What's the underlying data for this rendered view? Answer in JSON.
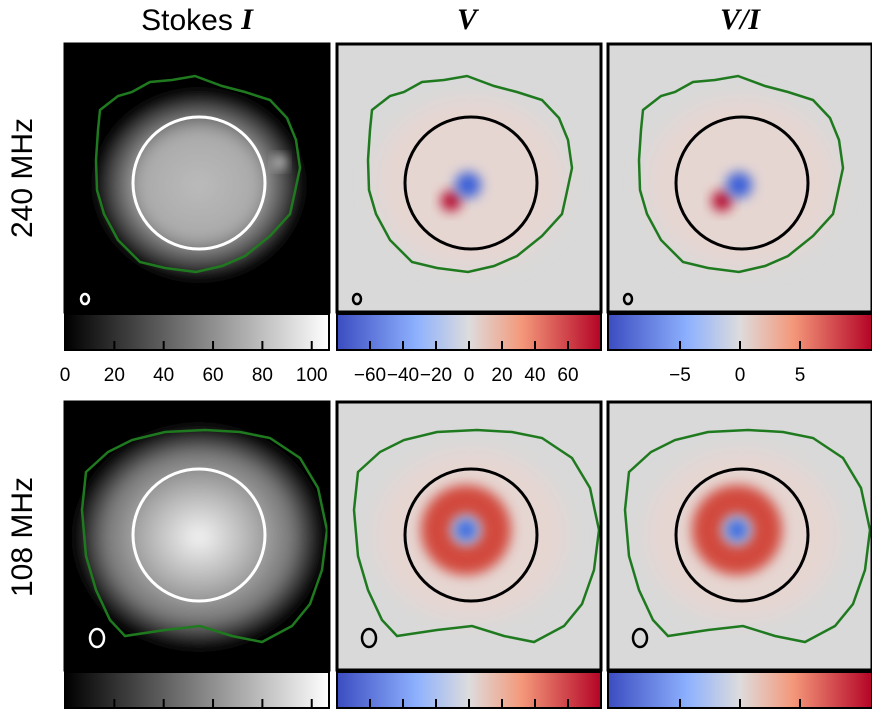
{
  "columns": [
    {
      "prefix": "Stokes",
      "symbol": "I"
    },
    {
      "symbol": "V"
    },
    {
      "symbol": "V/I"
    }
  ],
  "rows": [
    {
      "label": "240 MHz"
    },
    {
      "label": "108 MHz"
    }
  ],
  "colorbars": [
    {
      "colormap": "gray",
      "range": [
        0,
        107
      ],
      "ticks": [
        0,
        20,
        40,
        60,
        80,
        100
      ]
    },
    {
      "colormap": "bwr",
      "range": [
        -80,
        80
      ],
      "ticks": [
        {
          "value": -60,
          "label": "−60"
        },
        {
          "value": -40,
          "label": "−40"
        },
        {
          "value": -20,
          "label": "−20"
        },
        0,
        20,
        40,
        60
      ]
    },
    {
      "colormap": "bwr",
      "range": [
        -11,
        11
      ],
      "ticks": [
        {
          "value": -5,
          "label": "−5"
        },
        0,
        5
      ]
    }
  ]
}
